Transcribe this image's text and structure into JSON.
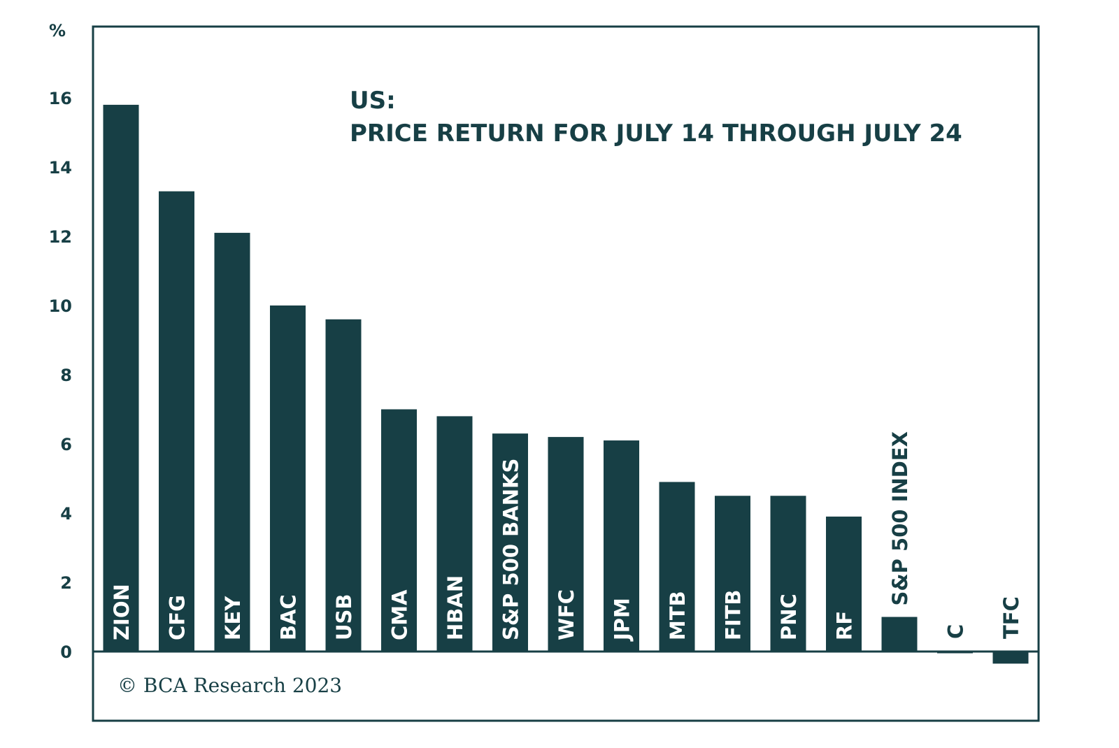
{
  "chart_data": {
    "type": "bar",
    "title_lines": [
      "US:",
      "PRICE RETURN FOR JULY 14 THROUGH JULY 24"
    ],
    "ylabel": "%",
    "ylim": [
      -2,
      18
    ],
    "yticks": [
      0,
      2,
      4,
      6,
      8,
      10,
      12,
      14,
      16
    ],
    "categories": [
      "ZION",
      "CFG",
      "KEY",
      "BAC",
      "USB",
      "CMA",
      "HBAN",
      "S&P 500 BANKS",
      "WFC",
      "JPM",
      "MTB",
      "FITB",
      "PNC",
      "RF",
      "S&P 500 INDEX",
      "C",
      "TFC"
    ],
    "values": [
      15.8,
      13.3,
      12.1,
      10.0,
      9.6,
      7.0,
      6.8,
      6.3,
      6.2,
      6.1,
      4.9,
      4.5,
      4.5,
      3.9,
      1.0,
      -0.05,
      -0.35
    ],
    "bar_color": "#173f45",
    "copyright": "© BCA Research 2023"
  }
}
